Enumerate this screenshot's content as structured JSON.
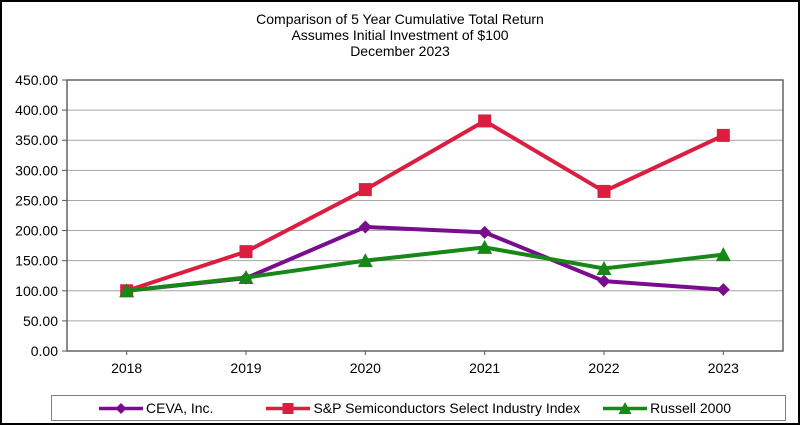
{
  "title": {
    "line1": "Comparison of 5 Year Cumulative Total Return",
    "line2": "Assumes Initial Investment of $100",
    "line3": "December 2023"
  },
  "chart_data": {
    "type": "line",
    "x": [
      "2018",
      "2019",
      "2020",
      "2021",
      "2022",
      "2023"
    ],
    "series": [
      {
        "name": "CEVA, Inc.",
        "marker": "diamond",
        "color": "#7A0C8E",
        "values": [
          100,
          121,
          206,
          197,
          116,
          102
        ]
      },
      {
        "name": "S&P Semiconductors Select Industry Index",
        "marker": "square",
        "color": "#DB1E40",
        "values": [
          100,
          165,
          268,
          382,
          265,
          358
        ]
      },
      {
        "name": "Russell 2000",
        "marker": "triangle",
        "color": "#178717",
        "values": [
          100,
          122,
          150,
          172,
          137,
          160
        ]
      }
    ],
    "ylim": [
      0,
      450
    ],
    "ytick_step": 50,
    "ytick_labels": [
      "0.00",
      "50.00",
      "100.00",
      "150.00",
      "200.00",
      "250.00",
      "300.00",
      "350.00",
      "400.00",
      "450.00"
    ],
    "grid": true,
    "legend_position": "bottom",
    "colors": {
      "gridline": "#a6a6a6",
      "plot_border": "#595959",
      "legend_border": "#7f7f7f",
      "outer_border": "#000000"
    }
  }
}
